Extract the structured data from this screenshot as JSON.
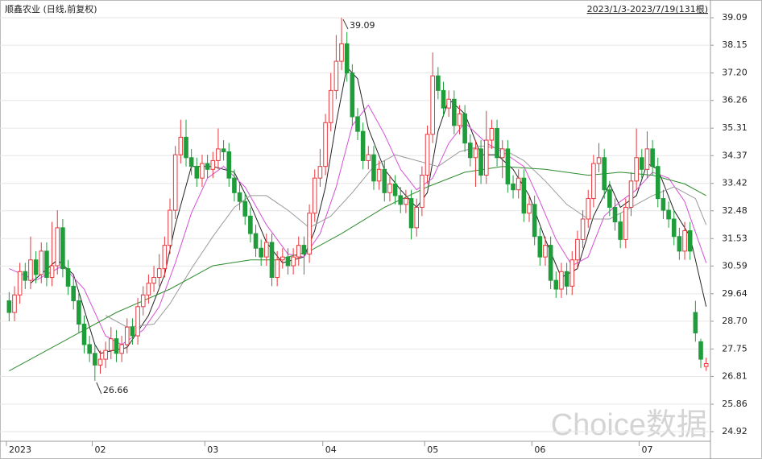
{
  "chart_data": {
    "type": "candlestick",
    "title": "顺鑫农业 (日线,前复权)",
    "subtitle": "2023/1/3-2023/7/19(131根)",
    "watermark": "Choice数据",
    "up_color": "#e8383d",
    "down_color": "#1e9d3a",
    "grid": true,
    "ylim": [
      24.59,
      39.56
    ],
    "yticks": [
      24.92,
      25.86,
      26.81,
      27.75,
      {
        "value": 28.7,
        "label": "28.70"
      },
      29.64,
      30.59,
      31.53,
      32.48,
      33.42,
      34.37,
      35.31,
      36.26,
      {
        "value": 37.2,
        "label": "37.20"
      },
      38.15,
      39.09
    ],
    "xticks": [
      {
        "value": 0,
        "label": "2023"
      },
      {
        "value": 16,
        "label": "02"
      },
      {
        "value": 37,
        "label": "03"
      },
      {
        "value": 59,
        "label": "04"
      },
      {
        "value": 78,
        "label": "05"
      },
      {
        "value": 98,
        "label": "06"
      },
      {
        "value": 118,
        "label": "07"
      }
    ],
    "open": [
      29.4,
      29.0,
      29.6,
      30.4,
      30.1,
      30.8,
      30.3,
      31.1,
      30.2,
      30.6,
      31.9,
      30.5,
      29.9,
      29.4,
      28.6,
      27.9,
      27.6,
      27.2,
      27.4,
      27.7,
      28.1,
      27.6,
      27.9,
      28.5,
      28.2,
      29.2,
      29.6,
      30.0,
      30.2,
      30.5,
      31.3,
      32.5,
      34.4,
      35.0,
      34.3,
      34.0,
      33.6,
      34.1,
      33.9,
      34.2,
      34.6,
      34.5,
      33.6,
      33.1,
      32.8,
      32.3,
      31.7,
      31.2,
      30.9,
      31.4,
      30.2,
      30.8,
      30.9,
      30.6,
      30.9,
      31.3,
      31.0,
      32.4,
      33.6,
      34.0,
      35.5,
      36.6,
      37.6,
      38.2,
      37.2,
      35.7,
      35.2,
      34.2,
      34.4,
      33.5,
      33.9,
      33.1,
      33.4,
      33.0,
      32.7,
      32.9,
      31.9,
      32.6,
      33.7,
      35.1,
      37.1,
      36.6,
      36.0,
      36.3,
      35.4,
      35.8,
      34.8,
      34.3,
      34.6,
      33.7,
      34.9,
      35.3,
      34.3,
      34.6,
      33.4,
      33.2,
      33.6,
      32.4,
      32.7,
      31.6,
      30.9,
      31.3,
      30.1,
      29.8,
      30.4,
      29.9,
      30.8,
      31.5,
      32.2,
      32.9,
      34.1,
      34.3,
      33.2,
      32.6,
      32.1,
      31.5,
      32.6,
      33.5,
      34.3,
      33.9,
      34.6,
      34.0,
      32.9,
      32.5,
      32.2,
      31.6,
      31.1,
      31.8,
      29.0,
      28.0,
      27.15
    ],
    "high": [
      29.7,
      29.9,
      30.7,
      30.7,
      31.6,
      31.1,
      31.4,
      31.4,
      32.1,
      32.5,
      32.2,
      30.8,
      30.2,
      29.7,
      28.9,
      28.2,
      27.9,
      27.7,
      28.0,
      28.5,
      28.4,
      28.2,
      28.8,
      28.8,
      29.5,
      29.9,
      30.3,
      30.6,
      31.0,
      31.6,
      32.9,
      34.7,
      35.6,
      35.6,
      34.6,
      34.3,
      34.4,
      34.4,
      34.5,
      35.3,
      34.9,
      34.8,
      33.9,
      33.4,
      33.1,
      32.6,
      32.0,
      31.5,
      31.7,
      31.7,
      31.1,
      31.2,
      31.2,
      31.2,
      31.6,
      31.6,
      32.7,
      33.9,
      34.6,
      35.8,
      37.2,
      38.5,
      39.09,
      38.6,
      37.5,
      36.0,
      35.5,
      34.7,
      34.7,
      34.2,
      34.2,
      33.7,
      33.7,
      33.3,
      33.2,
      33.2,
      32.9,
      34.0,
      35.4,
      37.9,
      37.4,
      36.9,
      36.6,
      36.6,
      36.1,
      36.1,
      35.1,
      34.9,
      34.9,
      35.9,
      35.6,
      35.6,
      34.9,
      34.9,
      33.7,
      33.9,
      33.9,
      33.0,
      33.0,
      31.9,
      31.6,
      31.6,
      30.4,
      30.7,
      30.7,
      31.1,
      31.8,
      32.5,
      33.2,
      34.4,
      34.8,
      34.6,
      33.5,
      32.9,
      32.4,
      32.9,
      33.8,
      35.3,
      34.6,
      35.2,
      34.9,
      34.3,
      33.2,
      32.8,
      32.5,
      31.9,
      32.1,
      32.1,
      29.4,
      28.1,
      27.45
    ],
    "low": [
      28.7,
      28.7,
      29.3,
      29.8,
      29.8,
      30.0,
      30.0,
      29.9,
      29.9,
      30.3,
      30.2,
      29.6,
      29.1,
      28.3,
      27.6,
      27.3,
      26.66,
      26.9,
      27.1,
      27.4,
      27.3,
      27.3,
      27.6,
      27.9,
      27.9,
      28.9,
      29.3,
      29.7,
      29.9,
      30.2,
      31.0,
      32.2,
      34.1,
      34.0,
      33.7,
      33.3,
      33.3,
      33.6,
      33.6,
      33.9,
      34.2,
      33.3,
      32.8,
      32.5,
      32.0,
      31.4,
      30.9,
      30.6,
      30.6,
      29.9,
      29.9,
      30.5,
      30.3,
      30.3,
      30.6,
      30.3,
      30.7,
      32.1,
      33.3,
      33.7,
      35.2,
      36.3,
      37.3,
      36.9,
      35.4,
      34.9,
      33.9,
      33.9,
      33.2,
      33.2,
      32.8,
      32.8,
      32.7,
      32.4,
      32.4,
      31.5,
      31.6,
      32.3,
      33.4,
      34.8,
      36.3,
      35.7,
      35.7,
      35.1,
      35.1,
      34.5,
      34.0,
      33.3,
      33.4,
      33.4,
      34.6,
      34.0,
      33.6,
      33.1,
      32.9,
      32.9,
      32.1,
      32.1,
      31.3,
      30.6,
      30.6,
      29.8,
      29.5,
      29.5,
      29.6,
      29.6,
      30.5,
      31.2,
      31.9,
      32.6,
      33.8,
      32.9,
      32.3,
      31.8,
      31.2,
      31.2,
      32.3,
      33.2,
      33.6,
      33.6,
      33.7,
      32.6,
      32.2,
      31.9,
      31.3,
      30.8,
      30.8,
      30.8,
      28.0,
      27.1,
      27.0
    ],
    "close": [
      29.0,
      29.6,
      30.4,
      30.1,
      30.8,
      30.3,
      31.1,
      30.2,
      30.6,
      31.9,
      30.5,
      29.9,
      29.4,
      28.6,
      27.9,
      27.6,
      27.2,
      27.4,
      27.7,
      28.1,
      27.6,
      27.9,
      28.5,
      28.2,
      29.2,
      29.6,
      30.0,
      30.2,
      30.5,
      31.3,
      32.5,
      34.4,
      35.0,
      34.3,
      34.0,
      33.6,
      34.1,
      33.9,
      34.2,
      34.6,
      34.5,
      33.6,
      33.1,
      32.8,
      32.3,
      31.7,
      31.2,
      30.9,
      31.4,
      30.2,
      30.8,
      30.9,
      30.6,
      30.9,
      31.3,
      31.0,
      32.4,
      33.6,
      34.0,
      35.5,
      36.6,
      37.6,
      38.2,
      37.2,
      35.7,
      35.2,
      34.2,
      34.4,
      33.5,
      33.9,
      33.1,
      33.4,
      33.0,
      32.7,
      32.9,
      31.9,
      32.6,
      33.7,
      35.1,
      37.1,
      36.6,
      36.0,
      36.3,
      35.4,
      35.8,
      34.8,
      34.3,
      34.6,
      33.7,
      34.9,
      35.3,
      34.3,
      34.6,
      33.4,
      33.2,
      33.6,
      32.4,
      32.7,
      31.6,
      30.9,
      31.3,
      30.1,
      29.8,
      30.4,
      29.9,
      30.8,
      31.5,
      32.2,
      32.9,
      34.1,
      34.3,
      33.2,
      32.6,
      32.1,
      31.5,
      32.6,
      33.5,
      34.3,
      33.9,
      34.6,
      34.0,
      32.9,
      32.5,
      32.2,
      31.6,
      31.1,
      31.8,
      31.1,
      28.3,
      27.4,
      27.25
    ],
    "ma_lines": [
      {
        "color": "#222222",
        "x": [
          4,
          9,
          12,
          16,
          17,
          22,
          26,
          29,
          31,
          34,
          38,
          42,
          45,
          48,
          51,
          55,
          57,
          59,
          61,
          63,
          65,
          67,
          70,
          73,
          76,
          78,
          80,
          82,
          85,
          88,
          91,
          94,
          97,
          100,
          103,
          106,
          109,
          112,
          114,
          117,
          119,
          121,
          124,
          127,
          130
        ],
        "values": [
          30.0,
          30.8,
          30.3,
          27.9,
          27.6,
          27.8,
          28.9,
          30.3,
          32.0,
          34.0,
          34.0,
          33.8,
          32.7,
          31.4,
          30.7,
          30.9,
          31.8,
          33.3,
          35.5,
          37.4,
          37.0,
          35.3,
          33.9,
          33.2,
          32.6,
          33.1,
          35.2,
          36.3,
          35.8,
          34.4,
          34.4,
          33.9,
          33.0,
          31.5,
          30.2,
          30.5,
          32.3,
          33.4,
          32.6,
          33.0,
          34.1,
          33.9,
          32.5,
          31.6,
          29.2
        ]
      },
      {
        "color": "#d64fd6",
        "x": [
          0,
          5,
          10,
          14,
          18,
          21,
          25,
          28,
          31,
          34,
          37,
          40,
          44,
          48,
          52,
          55,
          58,
          61,
          64,
          67,
          70,
          73,
          76,
          79,
          82,
          85,
          89,
          92,
          96,
          99,
          102,
          105,
          108,
          111,
          114,
          117,
          120,
          123,
          126,
          130
        ],
        "values": [
          30.5,
          30.1,
          30.6,
          29.8,
          28.2,
          27.9,
          28.4,
          29.2,
          30.7,
          32.4,
          33.6,
          34.0,
          33.3,
          32.0,
          31.0,
          30.9,
          31.7,
          33.3,
          35.4,
          36.1,
          35.1,
          33.9,
          33.2,
          33.6,
          34.8,
          35.5,
          34.8,
          34.5,
          34.0,
          32.8,
          31.5,
          30.6,
          30.9,
          32.3,
          32.8,
          33.2,
          33.8,
          33.6,
          32.8,
          30.7
        ]
      },
      {
        "color": "#9a9a9a",
        "x": [
          18,
          22,
          27,
          30,
          34,
          38,
          42,
          45,
          48,
          52,
          56,
          60,
          64,
          68,
          72,
          76,
          80,
          84,
          88,
          92,
          96,
          100,
          104,
          108,
          112,
          116,
          120,
          124,
          128,
          130
        ],
        "values": [
          28.9,
          28.5,
          28.6,
          29.3,
          30.5,
          31.6,
          32.6,
          33.0,
          33.0,
          32.5,
          31.9,
          32.3,
          33.1,
          34.0,
          34.4,
          34.2,
          34.0,
          34.5,
          34.7,
          34.6,
          34.2,
          33.5,
          32.7,
          32.2,
          32.2,
          32.6,
          33.0,
          33.3,
          32.9,
          32.0
        ]
      },
      {
        "color": "#2e8b2e",
        "x": [
          0,
          10,
          20,
          30,
          38,
          45,
          50,
          56,
          62,
          70,
          78,
          85,
          92,
          100,
          108,
          114,
          120,
          126,
          130
        ],
        "values": [
          27.0,
          28.0,
          29.0,
          29.8,
          30.6,
          30.8,
          30.8,
          31.1,
          31.7,
          32.6,
          33.3,
          33.8,
          34.0,
          33.9,
          33.7,
          33.8,
          33.7,
          33.4,
          33.0
        ]
      }
    ],
    "annotations": [
      {
        "label": "39.09",
        "index": 62,
        "value": 39.09
      },
      {
        "label": "26.66",
        "index": 16,
        "value": 26.66
      }
    ]
  }
}
